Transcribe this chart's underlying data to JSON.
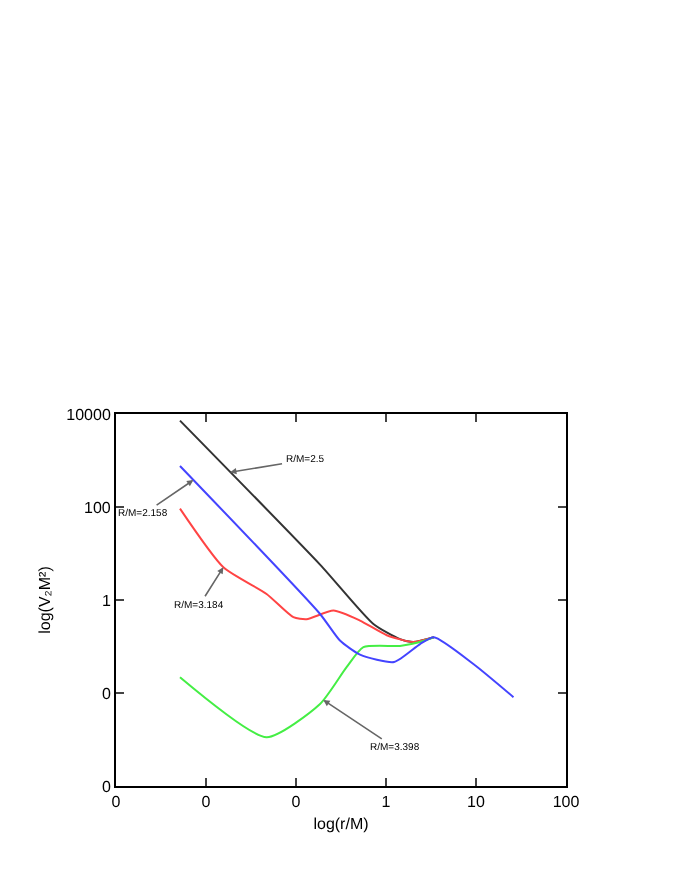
{
  "chart_data": {
    "type": "line",
    "xlabel": "log(r/M)",
    "ylabel": "log(V₂M²)",
    "log": "xy",
    "marker": "none",
    "line_style": "solid",
    "xlim": [
      0.001,
      100
    ],
    "ylim": [
      0.0001,
      10000
    ],
    "xticks": [
      {
        "value": 0.001,
        "label": "0"
      },
      {
        "value": 0.01,
        "label": "0"
      },
      {
        "value": 0.1,
        "label": "0"
      },
      1,
      10,
      100
    ],
    "yticks": [
      {
        "value": 0.0001,
        "label": "0"
      },
      {
        "value": 0.01,
        "label": "0"
      },
      1,
      100,
      10000
    ],
    "series": [
      {
        "color": "#333333",
        "x": [
          0.00514,
          0.185,
          0.724,
          1.43,
          2.01,
          3.41
        ],
        "values": [
          7210,
          5.77,
          0.305,
          0.144,
          0.125,
          0.158
        ]
      },
      {
        "color": "#ff4444",
        "x": [
          0.00514,
          0.0156,
          0.0471,
          0.0935,
          0.131,
          0.261,
          0.514,
          1.02,
          2.01,
          3.41
        ],
        "values": [
          92.5,
          5.07,
          1.35,
          0.427,
          0.386,
          0.592,
          0.361,
          0.175,
          0.125,
          0.158
        ]
      },
      {
        "color": "#44ee44",
        "x": [
          0.00514,
          0.0471,
          0.185,
          0.365,
          0.561,
          1.43,
          2.39,
          3.41
        ],
        "values": [
          0.0219,
          0.00112,
          0.00579,
          0.0359,
          0.0966,
          0.103,
          0.125,
          0.158
        ]
      },
      {
        "color": "#4444ff",
        "x": [
          0.00514,
          0.185,
          0.308,
          0.514,
          1.23,
          2.39,
          3.41,
          9.35,
          26.1
        ],
        "values": [
          762,
          0.5,
          0.134,
          0.067,
          0.0465,
          0.113,
          0.158,
          0.0421,
          0.00813
        ]
      }
    ],
    "annotations": [
      {
        "text": "R/M=2.5",
        "x": 0.0185,
        "y": 560
      },
      {
        "text": "R/M=2.158",
        "x": 0.00724,
        "y": 380
      },
      {
        "text": "R/M=3.184",
        "x": 0.0156,
        "y": 5.07
      },
      {
        "text": "R/M=3.398",
        "x": 0.201,
        "y": 0.0071
      }
    ]
  }
}
